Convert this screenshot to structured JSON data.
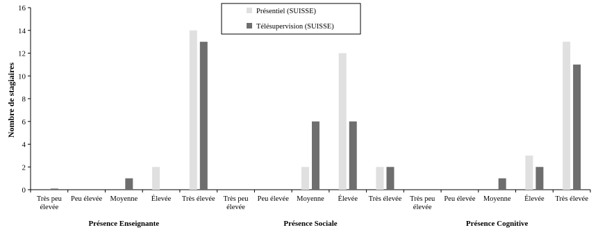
{
  "chart_data": {
    "type": "bar",
    "ylabel": "Nombre de stagiaires",
    "ylim": [
      0,
      16
    ],
    "yticks": [
      "0",
      "2",
      "4",
      "6",
      "8",
      "10",
      "12",
      "14",
      "16"
    ],
    "categories": [
      "Très peu élevée",
      "Peu élevée",
      "Moyenne",
      "Élevée",
      "Très élevée",
      "Très peu élevée",
      "Peu élevée",
      "Moyenne",
      "Élevée",
      "Très élevée",
      "Très peu élevée",
      "Peu élevée",
      "Moyenne",
      "Élevée",
      "Très élevée"
    ],
    "groups": [
      {
        "label": "Présence Enseignante",
        "start": 0,
        "end": 4
      },
      {
        "label": "Présence Sociale",
        "start": 5,
        "end": 9
      },
      {
        "label": "Présence Cognitive",
        "start": 10,
        "end": 14
      }
    ],
    "series": [
      {
        "name": "Présentiel (SUISSE)",
        "color": "#e0e0e0",
        "values": [
          0,
          0,
          0,
          2,
          14,
          0,
          0,
          2,
          12,
          2,
          0,
          0,
          0,
          3,
          13
        ]
      },
      {
        "name": "Télésupervision (SUISSE)",
        "color": "#6e6e6e",
        "values": [
          0.1,
          0,
          1,
          0,
          13,
          0,
          0,
          6,
          6,
          2,
          0,
          0,
          1,
          2,
          11
        ]
      }
    ],
    "legend_position": "top-center",
    "grid": false
  }
}
